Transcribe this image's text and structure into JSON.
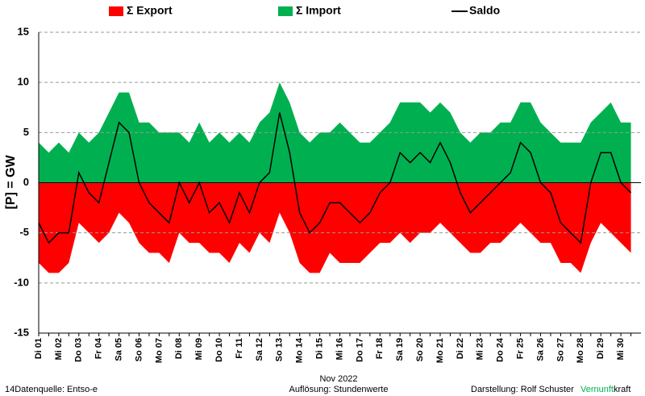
{
  "chart_data": {
    "type": "area",
    "ylabel": "[P]  = GW",
    "xlabel": "Nov 2022",
    "source": "14Datenquelle: Entso-e",
    "resolution": "Auflösung: Stundenwerte",
    "author": "Darstellung:  Rolf Schuster",
    "brand": [
      "Vernunft",
      "kraft"
    ],
    "brand_colors": [
      "#00b050",
      "#000000"
    ],
    "ylim": [
      -15,
      15
    ],
    "yticks": [
      -15,
      -10,
      -5,
      0,
      5,
      10,
      15
    ],
    "grid": true,
    "legend": "top",
    "categories": [
      "Di 01",
      null,
      "Mi 02",
      null,
      "Do 03",
      null,
      "Fr 04",
      null,
      "Sa 05",
      null,
      "So 06",
      null,
      "Mo 07",
      null,
      "Di 08",
      null,
      "Mi 09",
      null,
      "Do 10",
      null,
      "Fr 11",
      null,
      "Sa 12",
      null,
      "So 13",
      null,
      "Mo 14",
      null,
      "Di 15",
      null,
      "Mi 16",
      null,
      "Do 17",
      null,
      "Fr 18",
      null,
      "Sa 19",
      null,
      "So 20",
      null,
      "Mo 21",
      null,
      "Di 22",
      null,
      "Mi 23",
      null,
      "Do 24",
      null,
      "Fr 25",
      null,
      "Sa 26",
      null,
      "So 27",
      null,
      "Mo 28",
      null,
      "Di 29",
      null,
      "Mi 30",
      null
    ],
    "series": [
      {
        "name": "Σ Export",
        "color": "#ff0000",
        "type": "area",
        "values": [
          -8,
          -9,
          -9,
          -8,
          -4,
          -5,
          -6,
          -5,
          -3,
          -4,
          -6,
          -7,
          -7,
          -8,
          -5,
          -6,
          -6,
          -7,
          -7,
          -8,
          -6,
          -7,
          -5,
          -6,
          -3,
          -5,
          -8,
          -9,
          -9,
          -7,
          -8,
          -8,
          -8,
          -7,
          -6,
          -6,
          -5,
          -6,
          -5,
          -5,
          -4,
          -5,
          -6,
          -7,
          -7,
          -6,
          -6,
          -5,
          -4,
          -5,
          -6,
          -6,
          -8,
          -8,
          -9,
          -6,
          -4,
          -5,
          -6,
          -7
        ]
      },
      {
        "name": "Σ Import",
        "color": "#00b050",
        "type": "area",
        "values": [
          4,
          3,
          4,
          3,
          5,
          4,
          5,
          7,
          9,
          9,
          6,
          6,
          5,
          5,
          5,
          4,
          6,
          4,
          5,
          4,
          5,
          4,
          6,
          7,
          10,
          8,
          5,
          4,
          5,
          5,
          6,
          5,
          4,
          4,
          5,
          6,
          8,
          8,
          8,
          7,
          8,
          7,
          5,
          4,
          5,
          5,
          6,
          6,
          8,
          8,
          6,
          5,
          4,
          4,
          4,
          6,
          7,
          8,
          6,
          6
        ]
      },
      {
        "name": "Saldo",
        "color": "#000000",
        "type": "line",
        "values": [
          -4,
          -6,
          -5,
          -5,
          1,
          -1,
          -2,
          2,
          6,
          5,
          0,
          -2,
          -3,
          -4,
          0,
          -2,
          0,
          -3,
          -2,
          -4,
          -1,
          -3,
          0,
          1,
          7,
          3,
          -3,
          -5,
          -4,
          -2,
          -2,
          -3,
          -4,
          -3,
          -1,
          0,
          3,
          2,
          3,
          2,
          4,
          2,
          -1,
          -3,
          -2,
          -1,
          0,
          1,
          4,
          3,
          0,
          -1,
          -4,
          -5,
          -6,
          0,
          3,
          3,
          0,
          -1
        ]
      }
    ]
  }
}
